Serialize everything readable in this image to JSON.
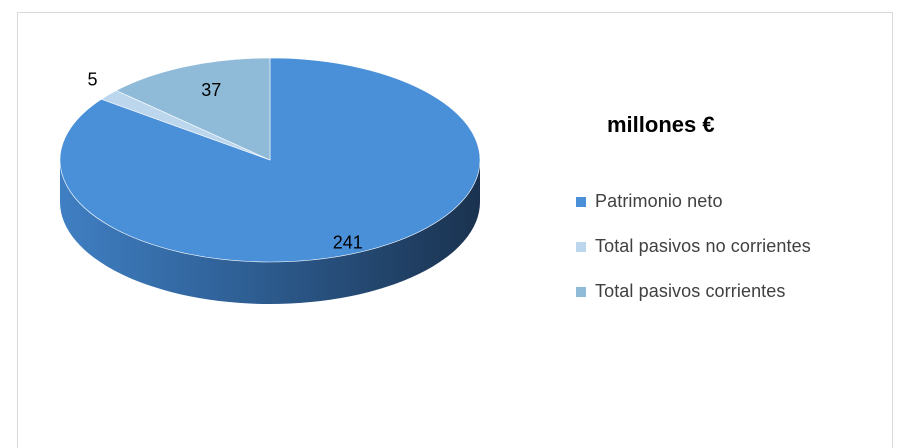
{
  "chart_data": {
    "type": "pie",
    "title": "millones €",
    "categories": [
      "Patrimonio neto",
      "Total pasivos no corrientes",
      "Total pasivos corrientes"
    ],
    "values": [
      241,
      5,
      37
    ],
    "colors": [
      "#4a90d9",
      "#bcd6ed",
      "#8fbbd9"
    ],
    "side_colors": [
      "#2f5f8f",
      "#7e9fbd",
      "#5f8aa8"
    ],
    "legend_position": "right",
    "style": "3d"
  }
}
